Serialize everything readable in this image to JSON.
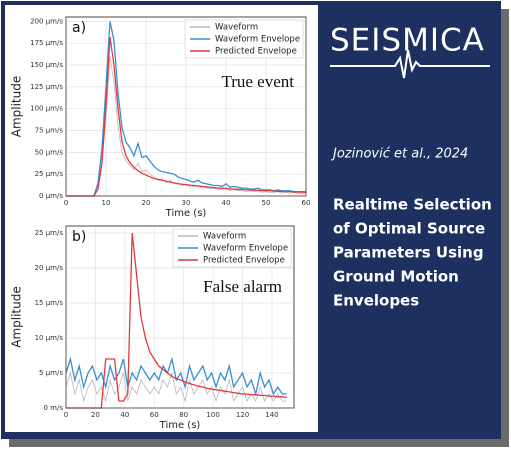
{
  "chart_data": [
    {
      "type": "line",
      "panel_label": "a)",
      "annotation": "True event",
      "xlabel": "Time (s)",
      "ylabel": "Amplitude",
      "x": [
        0,
        1,
        2,
        3,
        4,
        5,
        6,
        7,
        8,
        9,
        10,
        11,
        12,
        13,
        14,
        15,
        16,
        17,
        18,
        19,
        20,
        21,
        22,
        23,
        24,
        25,
        26,
        27,
        28,
        29,
        30,
        31,
        32,
        33,
        34,
        35,
        36,
        37,
        38,
        39,
        40,
        41,
        42,
        43,
        44,
        45,
        46,
        47,
        48,
        49,
        50,
        51,
        52,
        53,
        54,
        55,
        56,
        57,
        58,
        59,
        60
      ],
      "series": [
        {
          "name": "Waveform",
          "color": "#b8b8b8",
          "values": [
            0,
            0,
            0,
            0,
            0,
            0,
            0,
            0,
            10,
            40,
            90,
            160,
            130,
            80,
            50,
            40,
            35,
            30,
            38,
            28,
            30,
            25,
            22,
            18,
            20,
            15,
            18,
            14,
            15,
            12,
            13,
            10,
            11,
            12,
            9,
            10,
            8,
            9,
            7,
            8,
            9,
            6,
            7,
            6,
            6,
            5,
            6,
            5,
            6,
            4,
            5,
            4,
            4,
            5,
            3,
            4,
            3,
            4,
            3,
            3,
            3
          ]
        },
        {
          "name": "Waveform Envelope",
          "color": "#3a8fd0",
          "values": [
            0,
            0,
            0,
            0,
            0,
            0,
            0,
            0,
            15,
            55,
            125,
            200,
            178,
            118,
            78,
            62,
            55,
            46,
            60,
            44,
            46,
            40,
            34,
            30,
            28,
            27,
            26,
            25,
            22,
            20,
            19,
            17,
            16,
            18,
            15,
            14,
            13,
            12,
            12,
            11,
            14,
            10,
            11,
            10,
            9,
            9,
            8,
            8,
            9,
            7,
            7,
            7,
            6,
            7,
            6,
            6,
            6,
            5,
            5,
            5,
            5
          ]
        },
        {
          "name": "Predicted Envelope",
          "color": "#e03a3a",
          "values": [
            0,
            0,
            0,
            0,
            0,
            0,
            0,
            0,
            8,
            38,
            105,
            182,
            150,
            100,
            62,
            46,
            38,
            33,
            29,
            26,
            24,
            22,
            20,
            19,
            18,
            17,
            16,
            15,
            14,
            13.5,
            13,
            12.5,
            12,
            11.5,
            11,
            10.5,
            10,
            9.5,
            9,
            9,
            8.5,
            8,
            8,
            7.5,
            7.5,
            7,
            7,
            6.5,
            6.5,
            6,
            6,
            6,
            5.5,
            5.5,
            5,
            5,
            5,
            4.5,
            4.5,
            4.5,
            4
          ]
        }
      ],
      "xlim": [
        0,
        60
      ],
      "xticks": [
        0,
        10,
        20,
        30,
        40,
        50,
        60
      ],
      "ylim": [
        0,
        205
      ],
      "yticks": [
        {
          "value": 0,
          "label": "0 μm/s"
        },
        {
          "value": 25,
          "label": "25 μm/s"
        },
        {
          "value": 50,
          "label": "50 μm/s"
        },
        {
          "value": 75,
          "label": "75 μm/s"
        },
        {
          "value": 100,
          "label": "100 μm/s"
        },
        {
          "value": 125,
          "label": "125 μm/s"
        },
        {
          "value": 150,
          "label": "150 μm/s"
        },
        {
          "value": 175,
          "label": "175 μm/s"
        },
        {
          "value": 200,
          "label": "200 μm/s"
        }
      ],
      "grid": true,
      "legend": "upper right"
    },
    {
      "type": "line",
      "panel_label": "b)",
      "annotation": "False alarm",
      "xlabel": "Time (s)",
      "ylabel": "Amplitude",
      "x": [
        0,
        3,
        6,
        9,
        12,
        15,
        18,
        21,
        24,
        27,
        30,
        33,
        36,
        39,
        42,
        45,
        48,
        51,
        54,
        57,
        60,
        63,
        66,
        69,
        72,
        75,
        78,
        81,
        84,
        87,
        90,
        93,
        96,
        99,
        102,
        105,
        108,
        111,
        114,
        117,
        120,
        123,
        126,
        129,
        132,
        135,
        138,
        141,
        144,
        147,
        150
      ],
      "series": [
        {
          "name": "Waveform",
          "color": "#b8b8b8",
          "values": [
            3,
            5,
            2,
            4,
            1,
            3,
            4,
            2,
            3,
            1,
            4,
            2,
            3,
            5,
            1,
            3,
            2,
            4,
            3,
            2,
            3,
            2,
            4,
            3,
            5,
            2,
            3,
            1,
            4,
            2,
            3,
            4,
            2,
            3,
            1,
            3,
            2,
            4,
            1,
            2,
            3,
            1,
            2,
            1,
            3,
            1,
            2,
            1,
            2,
            1,
            1
          ]
        },
        {
          "name": "Waveform Envelope",
          "color": "#3a8fd0",
          "values": [
            5,
            7,
            4,
            6,
            3,
            5,
            6,
            4,
            5,
            3,
            6,
            4,
            5,
            7,
            3,
            5,
            4,
            6,
            5,
            4,
            5,
            4,
            6,
            5,
            7,
            4,
            5,
            3,
            6,
            4,
            5,
            6,
            4,
            5,
            3,
            5,
            4,
            6,
            3,
            4,
            5,
            3,
            4,
            2,
            5,
            3,
            4,
            2,
            3,
            2,
            2
          ]
        },
        {
          "name": "Predicted Envelope",
          "color": "#e03a3a",
          "values": [
            0,
            0,
            0,
            0,
            0,
            0,
            0,
            0,
            0,
            7,
            7,
            7,
            1,
            1,
            2,
            25,
            19,
            13,
            10,
            8,
            7,
            6,
            5.5,
            5,
            4.5,
            4.2,
            4,
            3.7,
            3.5,
            3.3,
            3.1,
            3,
            2.8,
            2.7,
            2.6,
            2.5,
            2.4,
            2.3,
            2.2,
            2.1,
            2,
            2,
            1.9,
            1.9,
            1.8,
            1.8,
            1.7,
            1.7,
            1.6,
            1.6,
            1.5
          ]
        }
      ],
      "xlim": [
        0,
        155
      ],
      "xticks": [
        0,
        20,
        40,
        60,
        80,
        100,
        120,
        140
      ],
      "ylim": [
        0,
        26
      ],
      "yticks": [
        {
          "value": 0,
          "label": "0 m/s"
        },
        {
          "value": 5,
          "label": "5 μm/s"
        },
        {
          "value": 10,
          "label": "10 μm/s"
        },
        {
          "value": 15,
          "label": "15 μm/s"
        },
        {
          "value": 20,
          "label": "20 μm/s"
        },
        {
          "value": 25,
          "label": "25 μm/s"
        }
      ],
      "grid": true,
      "legend": "upper right"
    }
  ],
  "panel": {
    "logo": "SEISMICA",
    "citation": "Jozinović et al., 2024",
    "title_lines": [
      "Realtime Selection",
      "of Optimal Source",
      "Parameters Using",
      "Ground Motion",
      "Envelopes"
    ]
  }
}
